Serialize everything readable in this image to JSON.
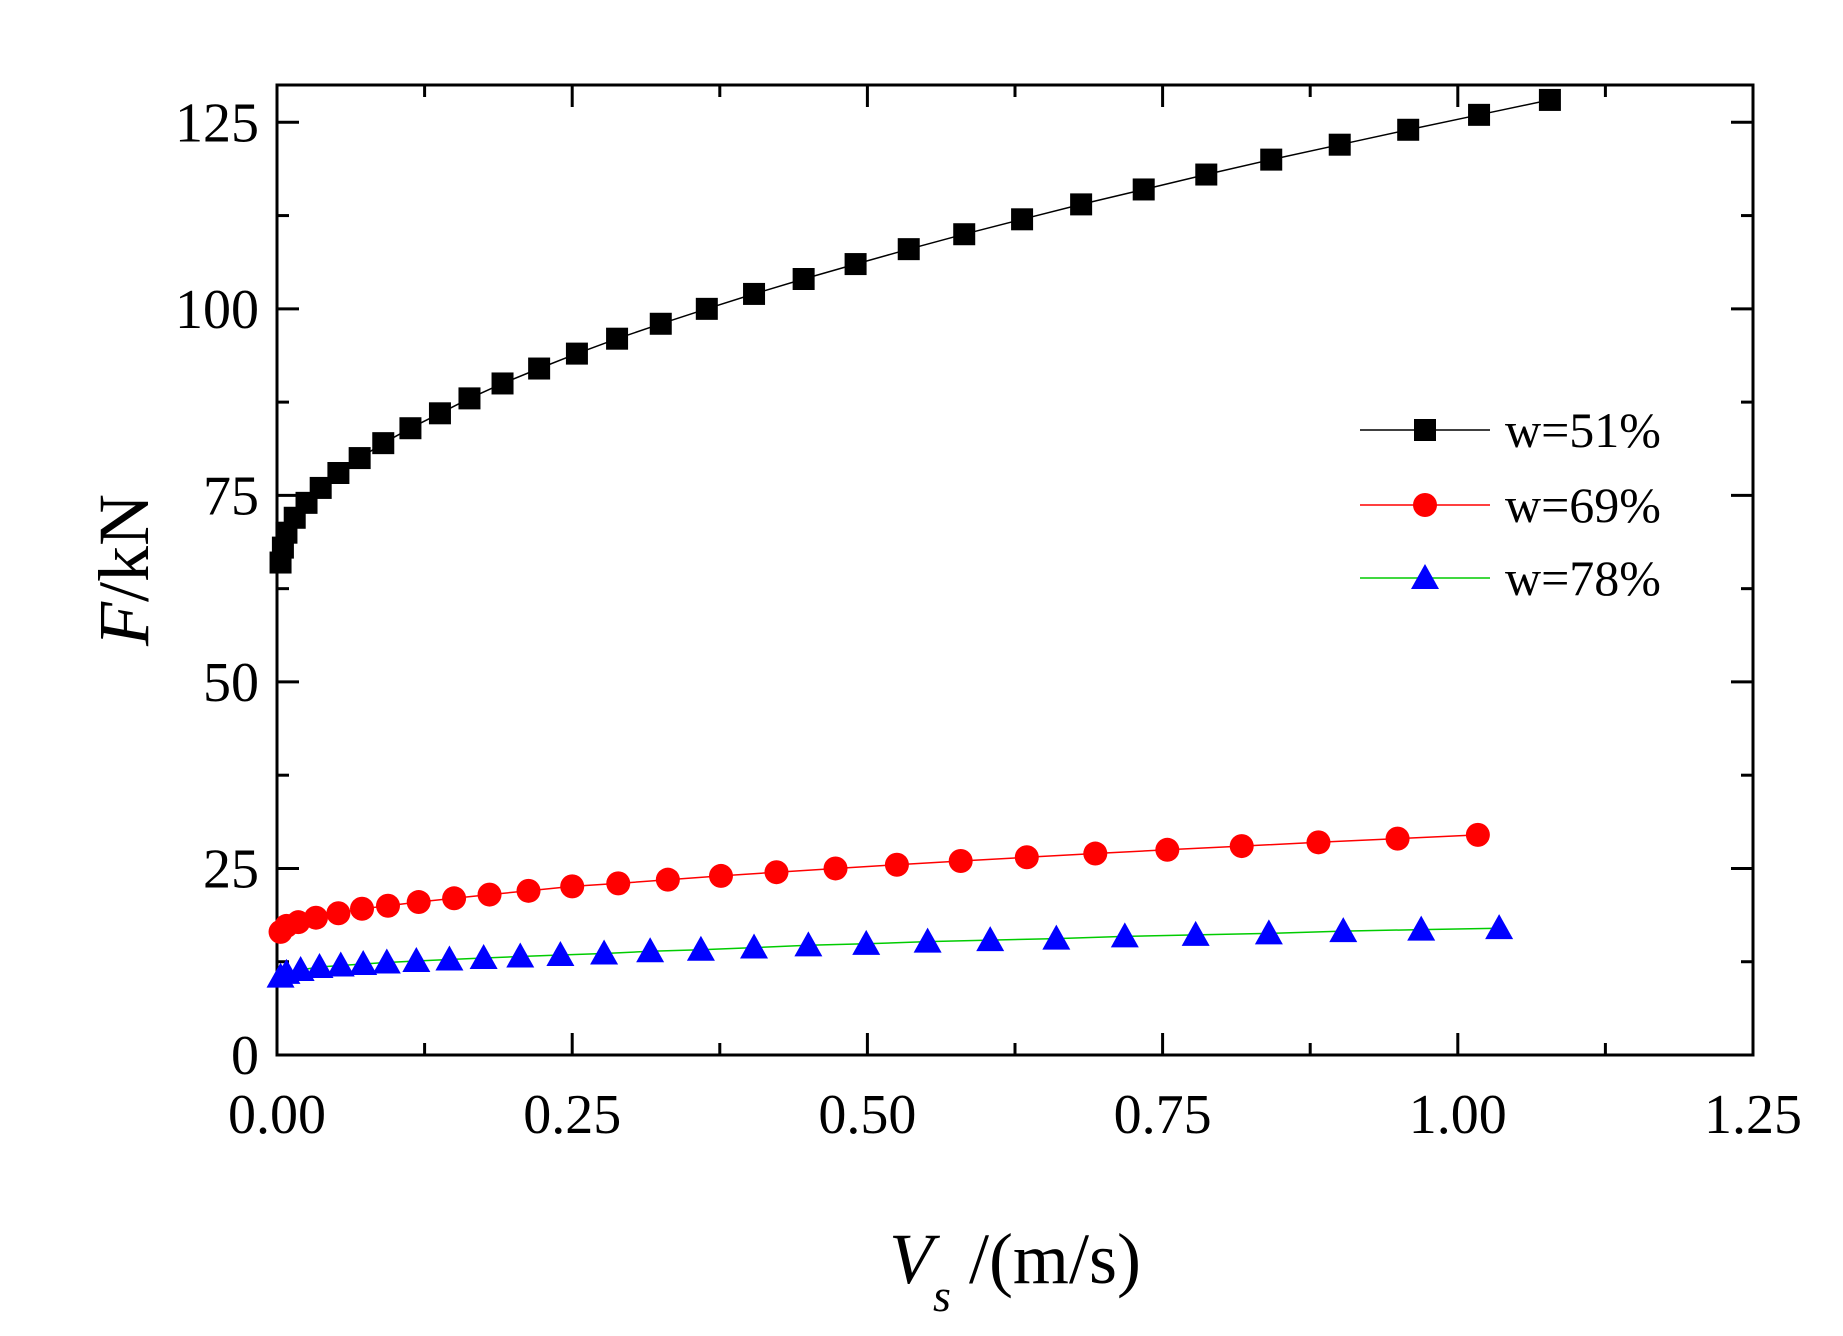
{
  "chart_data": {
    "type": "line",
    "xlabel": {
      "main": "V",
      "sub": "s",
      "rest": " /(m/s)"
    },
    "ylabel": {
      "main": "F",
      "rest": "/kN"
    },
    "xlim": [
      0,
      1.25
    ],
    "ylim": [
      0,
      130
    ],
    "xticks": [
      0,
      0.25,
      0.5,
      0.75,
      1.0,
      1.25
    ],
    "xtick_labels": [
      "0.00",
      "0.25",
      "0.50",
      "0.75",
      "1.00",
      "1.25"
    ],
    "yticks": [
      0,
      25,
      50,
      75,
      100,
      125
    ],
    "ytick_labels": [
      "0",
      "25",
      "50",
      "75",
      "100",
      "125"
    ],
    "legend_position": "center-right",
    "series": [
      {
        "name": "w=51%",
        "color": "#000000",
        "marker": "square",
        "points": [
          [
            0.003,
            66
          ],
          [
            0.005,
            68
          ],
          [
            0.008,
            70
          ],
          [
            0.015,
            72
          ],
          [
            0.025,
            74
          ],
          [
            0.037,
            76
          ],
          [
            0.052,
            78
          ],
          [
            0.07,
            80
          ],
          [
            0.09,
            82
          ],
          [
            0.113,
            84
          ],
          [
            0.138,
            86
          ],
          [
            0.163,
            88
          ],
          [
            0.191,
            90
          ],
          [
            0.222,
            92
          ],
          [
            0.254,
            94
          ],
          [
            0.288,
            96
          ],
          [
            0.325,
            98
          ],
          [
            0.364,
            100
          ],
          [
            0.404,
            102
          ],
          [
            0.446,
            104
          ],
          [
            0.49,
            106
          ],
          [
            0.535,
            108
          ],
          [
            0.582,
            110
          ],
          [
            0.631,
            112
          ],
          [
            0.681,
            114
          ],
          [
            0.734,
            116
          ],
          [
            0.787,
            118
          ],
          [
            0.842,
            120
          ],
          [
            0.9,
            122
          ],
          [
            0.958,
            124
          ],
          [
            1.018,
            126
          ],
          [
            1.078,
            128
          ]
        ]
      },
      {
        "name": "w=69%",
        "color": "#ff0000",
        "marker": "circle",
        "points": [
          [
            0.003,
            16.5
          ],
          [
            0.008,
            17.3
          ],
          [
            0.018,
            17.8
          ],
          [
            0.033,
            18.4
          ],
          [
            0.052,
            19.0
          ],
          [
            0.072,
            19.6
          ],
          [
            0.094,
            20.0
          ],
          [
            0.12,
            20.5
          ],
          [
            0.15,
            21.0
          ],
          [
            0.18,
            21.5
          ],
          [
            0.213,
            22.0
          ],
          [
            0.25,
            22.6
          ],
          [
            0.289,
            23.0
          ],
          [
            0.331,
            23.5
          ],
          [
            0.376,
            24.0
          ],
          [
            0.423,
            24.5
          ],
          [
            0.473,
            25.0
          ],
          [
            0.525,
            25.5
          ],
          [
            0.579,
            26.0
          ],
          [
            0.635,
            26.5
          ],
          [
            0.693,
            27.0
          ],
          [
            0.754,
            27.5
          ],
          [
            0.817,
            28.0
          ],
          [
            0.882,
            28.5
          ],
          [
            0.949,
            29.0
          ],
          [
            1.017,
            29.5
          ]
        ]
      },
      {
        "name": "w=78%",
        "color": "#0000ff",
        "marker": "triangle",
        "line_color": "#00cc00",
        "points": [
          [
            0.003,
            10.5
          ],
          [
            0.008,
            11.0
          ],
          [
            0.02,
            11.4
          ],
          [
            0.036,
            11.8
          ],
          [
            0.054,
            12.0
          ],
          [
            0.073,
            12.2
          ],
          [
            0.093,
            12.4
          ],
          [
            0.118,
            12.6
          ],
          [
            0.146,
            12.8
          ],
          [
            0.175,
            13.0
          ],
          [
            0.206,
            13.2
          ],
          [
            0.24,
            13.4
          ],
          [
            0.277,
            13.6
          ],
          [
            0.316,
            13.9
          ],
          [
            0.359,
            14.1
          ],
          [
            0.404,
            14.4
          ],
          [
            0.45,
            14.7
          ],
          [
            0.499,
            14.9
          ],
          [
            0.551,
            15.2
          ],
          [
            0.604,
            15.4
          ],
          [
            0.66,
            15.6
          ],
          [
            0.718,
            15.9
          ],
          [
            0.778,
            16.1
          ],
          [
            0.84,
            16.3
          ],
          [
            0.903,
            16.6
          ],
          [
            0.969,
            16.8
          ],
          [
            1.035,
            17.0
          ]
        ]
      }
    ]
  }
}
